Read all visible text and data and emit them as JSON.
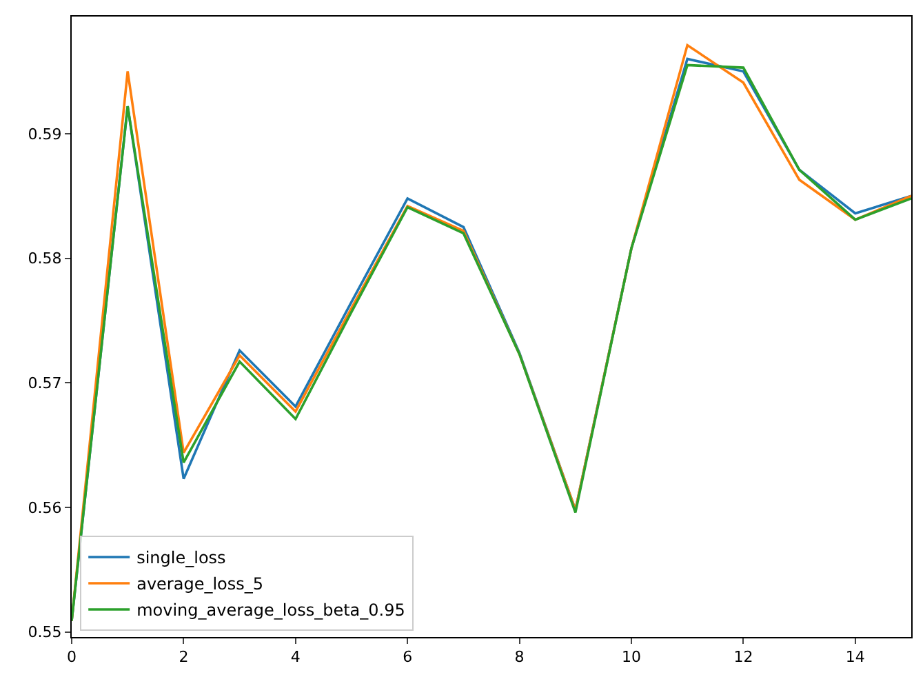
{
  "chart_data": {
    "type": "line",
    "x": [
      0,
      1,
      2,
      3,
      4,
      5,
      6,
      7,
      8,
      9,
      10,
      11,
      12,
      13,
      14,
      15
    ],
    "series": [
      {
        "name": "single_loss",
        "color": "#1f77b4",
        "values": [
          0.5509,
          0.5922,
          0.5623,
          0.5726,
          0.5681,
          0.5765,
          0.5848,
          0.5825,
          0.5724,
          0.5598,
          0.5808,
          0.596,
          0.595,
          0.5871,
          0.5836,
          0.585
        ]
      },
      {
        "name": "average_loss_5",
        "color": "#ff7f0e",
        "values": [
          0.5509,
          0.595,
          0.5644,
          0.5722,
          0.5677,
          0.576,
          0.5842,
          0.5822,
          0.5723,
          0.5598,
          0.5808,
          0.5971,
          0.5941,
          0.5863,
          0.5831,
          0.585
        ]
      },
      {
        "name": "moving_average_loss_beta_0.95",
        "color": "#2ca02c",
        "values": [
          0.5509,
          0.5922,
          0.5636,
          0.5717,
          0.5671,
          0.5757,
          0.5841,
          0.582,
          0.5723,
          0.5596,
          0.5808,
          0.5955,
          0.5953,
          0.5871,
          0.5831,
          0.5848
        ]
      }
    ],
    "xlim": [
      0,
      15
    ],
    "xticks": [
      0,
      2,
      4,
      6,
      8,
      10,
      12,
      14
    ],
    "ylim": [
      0.5496,
      0.5994
    ],
    "yticks": [
      0.55,
      0.56,
      0.57,
      0.58,
      0.59
    ],
    "legend": "bottom left",
    "grid": false
  }
}
